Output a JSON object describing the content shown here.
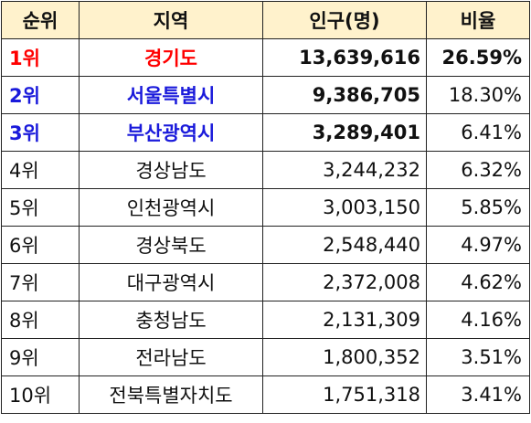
{
  "colors": {
    "header_bg": "#fff2cc",
    "rank1": "#ff0000",
    "rank2": "#1a1adb",
    "rank3": "#1a1adb",
    "text": "#111111",
    "border": "#222222"
  },
  "headers": {
    "rank": "순위",
    "region": "지역",
    "population": "인구(명)",
    "ratio": "비율"
  },
  "rows": [
    {
      "rank": "1위",
      "region": "경기도",
      "population": "13,639,616",
      "ratio": "26.59%"
    },
    {
      "rank": "2위",
      "region": "서울특별시",
      "population": "9,386,705",
      "ratio": "18.30%"
    },
    {
      "rank": "3위",
      "region": "부산광역시",
      "population": "3,289,401",
      "ratio": "6.41%"
    },
    {
      "rank": "4위",
      "region": "경상남도",
      "population": "3,244,232",
      "ratio": "6.32%"
    },
    {
      "rank": "5위",
      "region": "인천광역시",
      "population": "3,003,150",
      "ratio": "5.85%"
    },
    {
      "rank": "6위",
      "region": "경상북도",
      "population": "2,548,440",
      "ratio": "4.97%"
    },
    {
      "rank": "7위",
      "region": "대구광역시",
      "population": "2,372,008",
      "ratio": "4.62%"
    },
    {
      "rank": "8위",
      "region": "충청남도",
      "population": "2,131,309",
      "ratio": "4.16%"
    },
    {
      "rank": "9위",
      "region": "전라남도",
      "population": "1,800,352",
      "ratio": "3.51%"
    },
    {
      "rank": "10위",
      "region": "전북특별자치도",
      "population": "1,751,318",
      "ratio": "3.41%"
    }
  ]
}
